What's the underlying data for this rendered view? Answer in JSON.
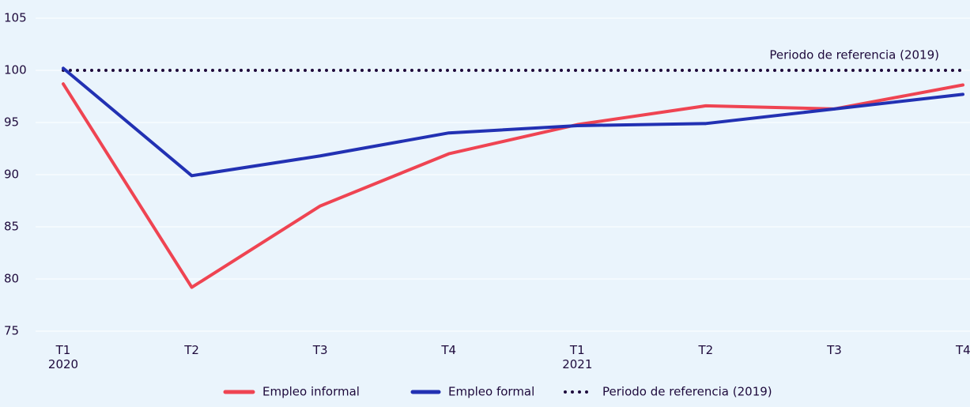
{
  "chart_data": {
    "type": "line",
    "categories": [
      "T1\n2020",
      "T2",
      "T3",
      "T4",
      "T1\n2021",
      "T2",
      "T3",
      "T4"
    ],
    "series": [
      {
        "name": "Empleo informal",
        "color": "#ef4452",
        "values": [
          98.7,
          79.2,
          87.0,
          92.0,
          94.8,
          96.6,
          96.3,
          98.6
        ]
      },
      {
        "name": "Empleo formal",
        "color": "#2231b3",
        "values": [
          100.2,
          89.9,
          91.8,
          94.0,
          94.7,
          94.9,
          96.3,
          97.7
        ]
      }
    ],
    "reference": {
      "name": "Periodo de referencia (2019)",
      "value": 100,
      "color": "#1e0a3c",
      "annotation": "Periodo de referencia (2019)"
    },
    "ylim": [
      75,
      105
    ],
    "yticks": [
      75,
      80,
      85,
      90,
      95,
      100,
      105
    ],
    "grid": true
  }
}
